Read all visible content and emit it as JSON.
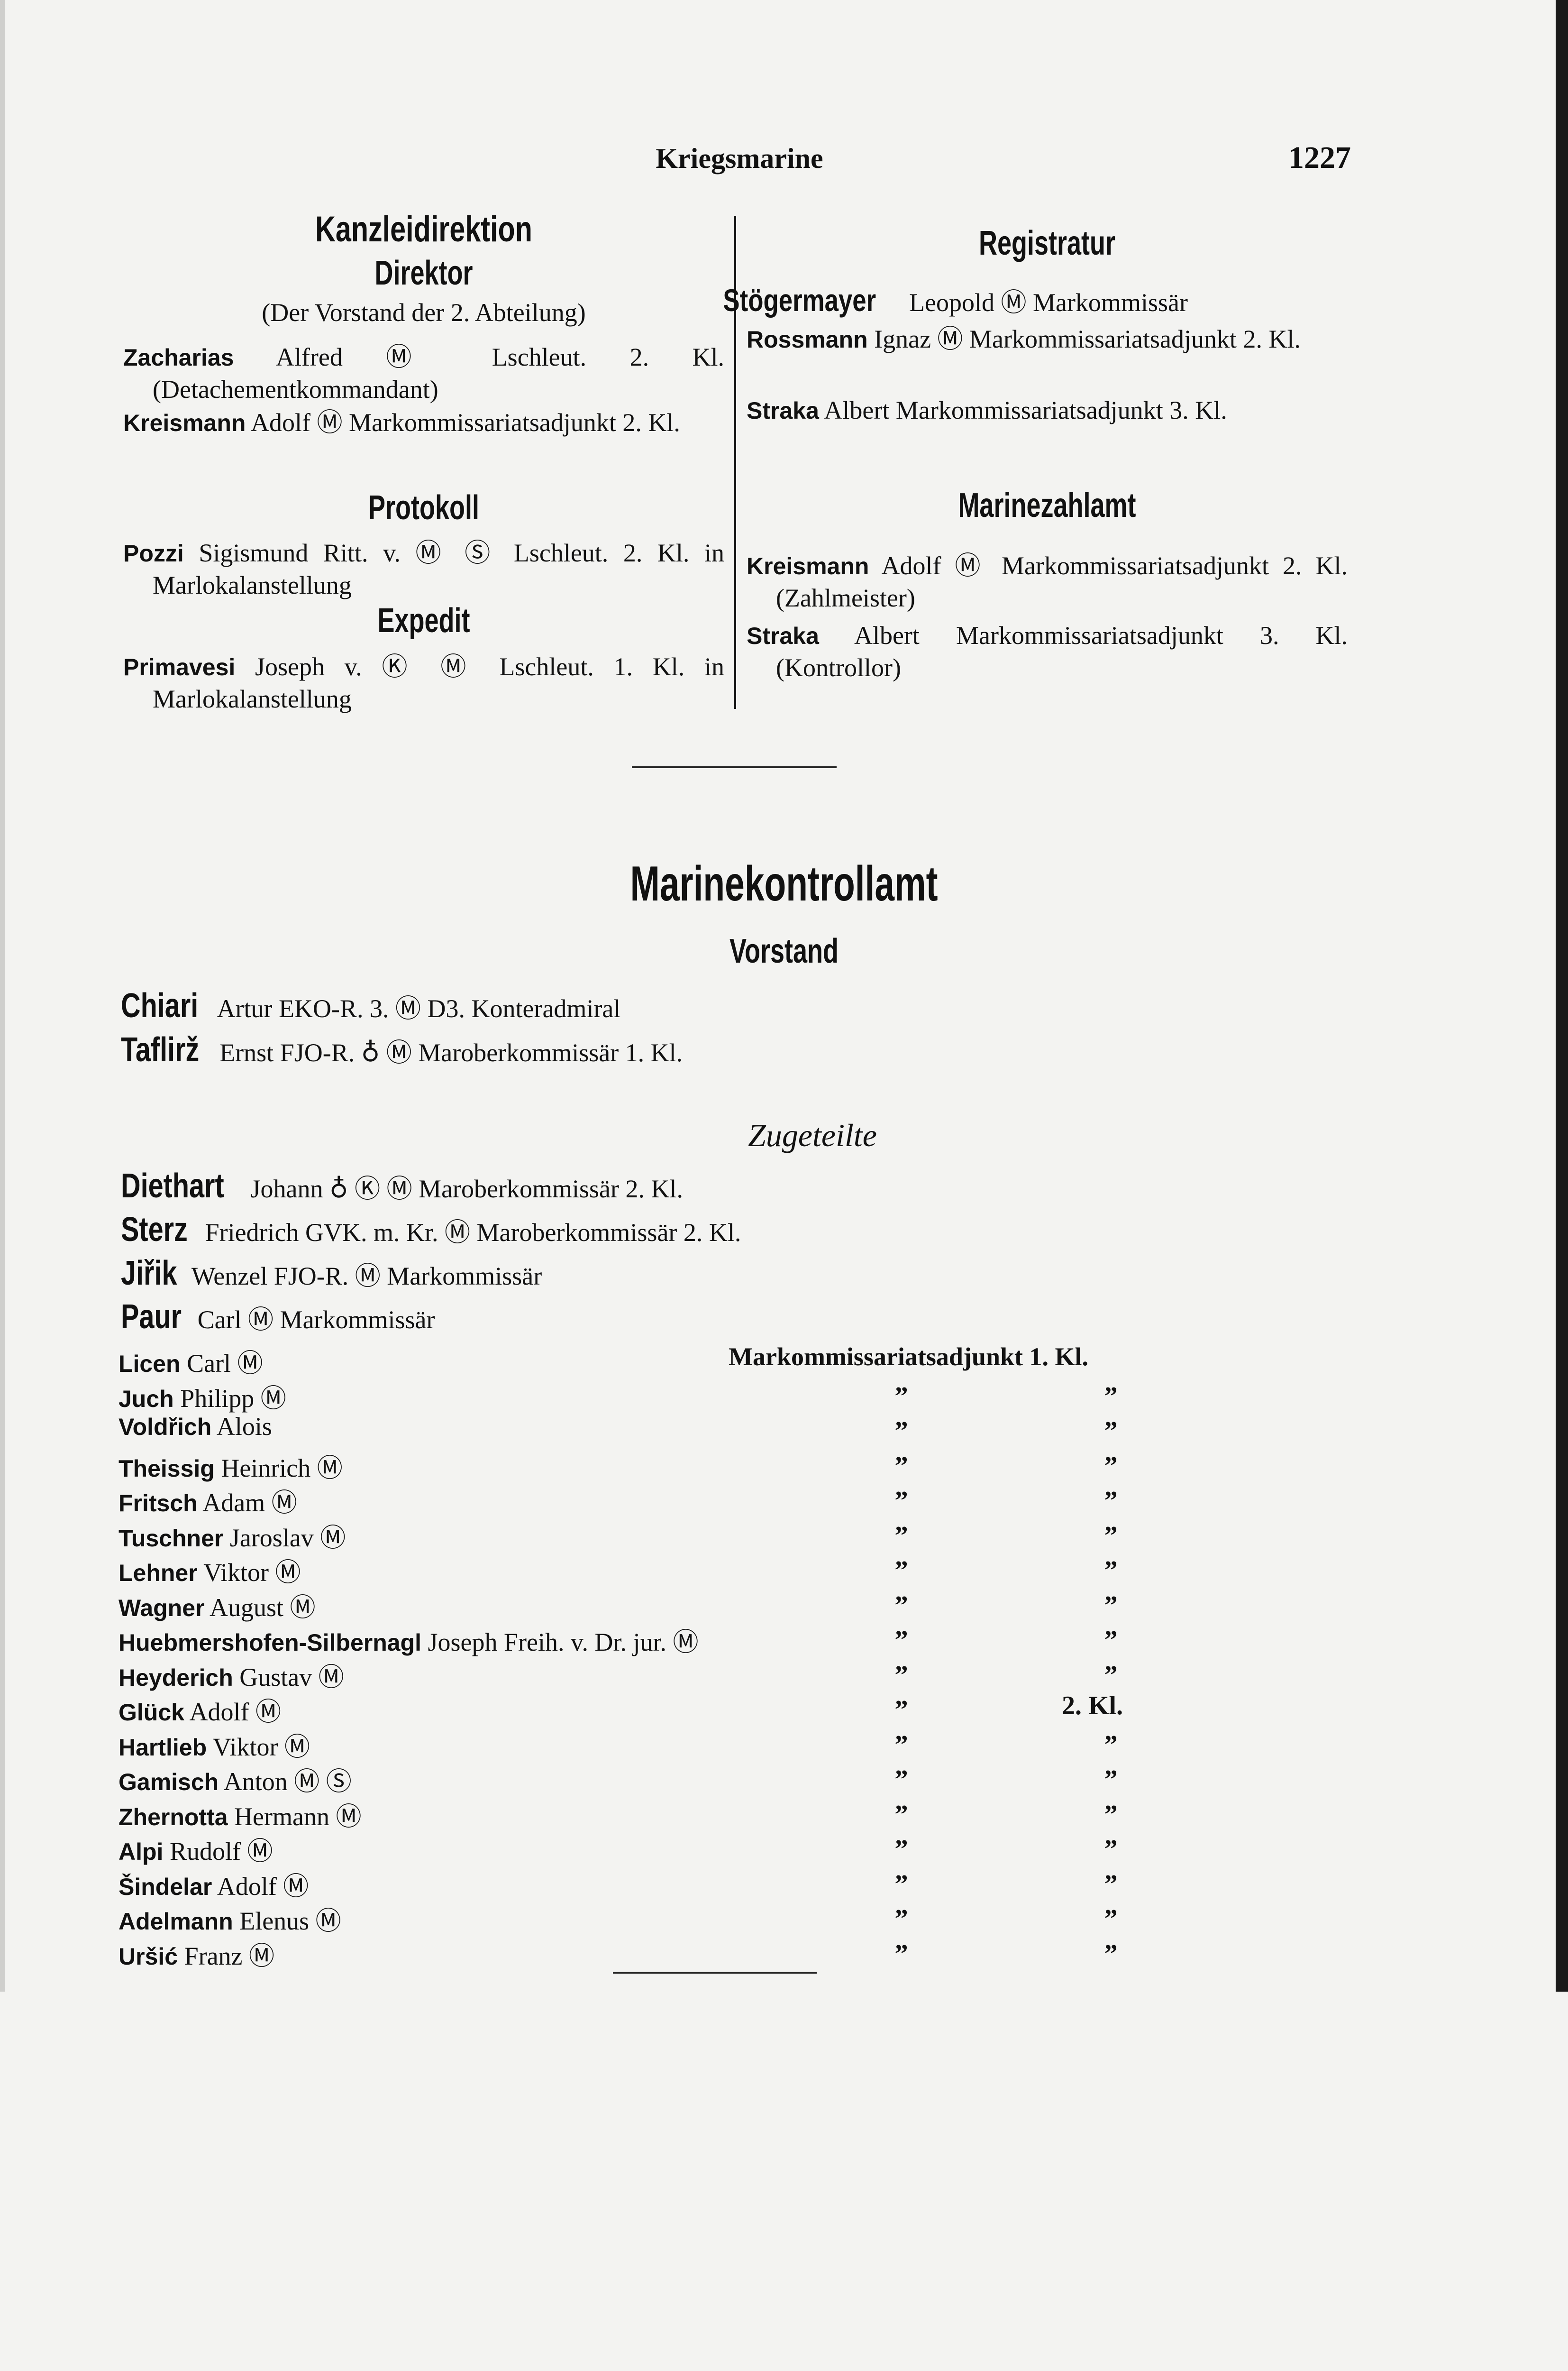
{
  "header": {
    "running_title": "Kriegsmarine",
    "page_number": "1227"
  },
  "left": {
    "heading": "Kanzleidirektion",
    "subheading": "Direktor",
    "note": "(Der Vorstand der 2. Abteilung)",
    "direktor_entries": [
      {
        "surname": "Zacharias",
        "text": "Alfred Ⓜ Lschleut. 2. Kl. (Detachementkommandant)"
      },
      {
        "surname": "Kreismann",
        "text": "Adolf Ⓜ Markommissariatsadjunkt 2. Kl."
      }
    ],
    "protokoll_heading": "Protokoll",
    "protokoll_entries": [
      {
        "surname": "Pozzi",
        "text": "Sigismund Ritt. v. Ⓜ Ⓢ Lschleut. 2. Kl. in Marlokalanstellung"
      }
    ],
    "expedit_heading": "Expedit",
    "expedit_entries": [
      {
        "surname": "Primavesi",
        "text": "Joseph v. Ⓚ Ⓜ Lschleut. 1. Kl. in Marlokalanstellung"
      }
    ]
  },
  "right": {
    "registratur_heading": "Registratur",
    "registratur_entries": [
      {
        "surname": "Stögermayer",
        "text": "Leopold Ⓜ Markommissär"
      },
      {
        "surname": "Rossmann",
        "text": "Ignaz Ⓜ Markommissariatsadjunkt 2. Kl."
      },
      {
        "surname": "Straka",
        "text": "Albert Markommissariatsadjunkt 3. Kl."
      }
    ],
    "zahlamt_heading": "Marinezahlamt",
    "zahlamt_entries": [
      {
        "surname": "Kreismann",
        "text": "Adolf Ⓜ Markommissariatsadjunkt 2. Kl. (Zahlmeister)"
      },
      {
        "surname": "Straka",
        "text": "Albert Markommissariatsadjunkt 3. Kl. (Kontrollor)"
      }
    ]
  },
  "kontrollamt": {
    "heading": "Marinekontrollamt",
    "vorstand_heading": "Vorstand",
    "vorstand": [
      {
        "surname": "Chiari",
        "text": "Artur EKO-R. 3. Ⓜ D3. Konteradmiral"
      },
      {
        "surname": "Taflirž",
        "text": "Ernst FJO-R. ♁ Ⓜ Maroberkommissär 1. Kl."
      }
    ],
    "zugeteilte_heading": "Zugeteilte",
    "senior": [
      {
        "surname": "Diethart",
        "text": "Johann ♁ Ⓚ Ⓜ Maroberkommissär 2. Kl."
      },
      {
        "surname": "Sterz",
        "text": "Friedrich GVK. m. Kr. Ⓜ Maroberkommissär 2. Kl."
      },
      {
        "surname": "Jiřik",
        "text": "Wenzel FJO-R. Ⓜ Markommissär"
      },
      {
        "surname": "Paur",
        "text": "Carl Ⓜ Markommissär"
      }
    ],
    "list": [
      {
        "surname": "Licen",
        "text": "Carl Ⓜ",
        "rank": "Markommissariatsadjunkt 1. Kl."
      },
      {
        "surname": "Juch",
        "text": "Philipp Ⓜ",
        "d1": "„",
        "d2": "„"
      },
      {
        "surname": "Voldřich",
        "text": "Alois",
        "d1": "„",
        "d2": "„"
      },
      {
        "surname": "Theissig",
        "text": "Heinrich Ⓜ",
        "d1": "„",
        "d2": "„"
      },
      {
        "surname": "Fritsch",
        "text": "Adam Ⓜ",
        "d1": "„",
        "d2": "„"
      },
      {
        "surname": "Tuschner",
        "text": "Jaroslav Ⓜ",
        "d1": "„",
        "d2": "„"
      },
      {
        "surname": "Lehner",
        "text": "Viktor Ⓜ",
        "d1": "„",
        "d2": "„"
      },
      {
        "surname": "Wagner",
        "text": "August Ⓜ",
        "d1": "„",
        "d2": "„"
      },
      {
        "surname": "Huebmershofen-Silbernagl",
        "text": "Joseph Freih. v. Dr. jur. Ⓜ",
        "d1": "„",
        "d2": "„"
      },
      {
        "surname": "Heyderich",
        "text": "Gustav Ⓜ",
        "d1": "„",
        "d2": "„"
      },
      {
        "surname": "Glück",
        "text": "Adolf Ⓜ",
        "d1": "„",
        "d2": "2. Kl."
      },
      {
        "surname": "Hartlieb",
        "text": "Viktor Ⓜ",
        "d1": "„",
        "d2": "„"
      },
      {
        "surname": "Gamisch",
        "text": "Anton Ⓜ Ⓢ",
        "d1": "„",
        "d2": "„"
      },
      {
        "surname": "Zhernotta",
        "text": "Hermann Ⓜ",
        "d1": "„",
        "d2": "„"
      },
      {
        "surname": "Alpi",
        "text": "Rudolf Ⓜ",
        "d1": "„",
        "d2": "„"
      },
      {
        "surname": "Šindelar",
        "text": "Adolf Ⓜ",
        "d1": "„",
        "d2": "„"
      },
      {
        "surname": "Adelmann",
        "text": "Elenus Ⓜ",
        "d1": "„",
        "d2": "„"
      },
      {
        "surname": "Uršić",
        "text": "Franz Ⓜ",
        "d1": "„",
        "d2": "„"
      }
    ]
  }
}
